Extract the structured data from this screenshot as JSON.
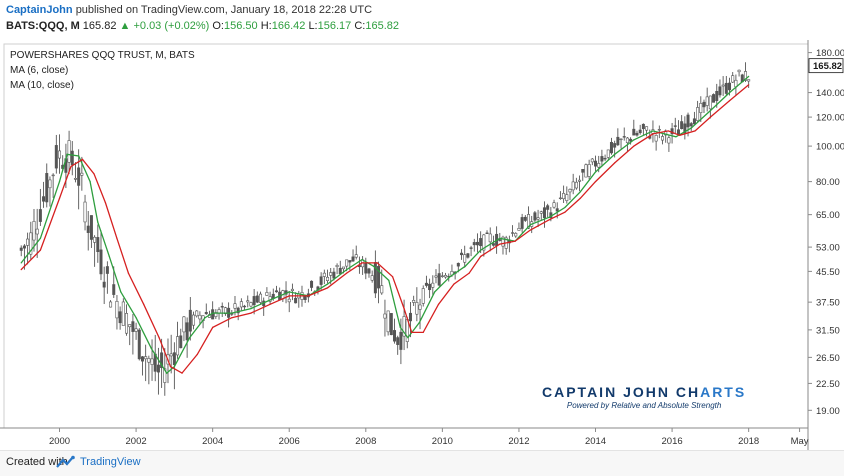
{
  "header": {
    "user": "CaptainJohn",
    "published": "published on TradingView.com, January 18, 2018 22:28 UTC",
    "symbol": "BATS:QQQ, M",
    "last": "165.82",
    "change_arrow": "▲",
    "change": "+0.03 (+0.02%)",
    "open_label": "O:",
    "open": "156.50",
    "high_label": "H:",
    "high": "166.42",
    "low_label": "L:",
    "low": "156.17",
    "close_label": "C:",
    "close": "165.82"
  },
  "legend": {
    "title": "POWERSHARES QQQ TRUST, M, BATS",
    "ma1": "MA (6, close)",
    "ma2": "MA (10, close)"
  },
  "branding": {
    "title_part1": "CAPTAIN JOHN CH",
    "title_part2": "ARTS",
    "subtitle": "Powered by Relative and  Absolute Strength"
  },
  "footer": {
    "made_with": "Created with",
    "tradingview": "TradingView"
  },
  "colors": {
    "candle": "#555555",
    "ma6": "#2e9e3e",
    "ma10": "#d62020",
    "last_price_tag": "#1a1a1a",
    "up": "#2e9e3e",
    "link": "#1a6fc4"
  },
  "chart_data": {
    "type": "line",
    "title": "POWERSHARES QQQ TRUST, M, BATS",
    "scale": "log",
    "ylim": [
      17,
      190
    ],
    "y_ticks": [
      "180.00",
      "140.00",
      "120.00",
      "100.00",
      "80.00",
      "65.00",
      "53.00",
      "45.50",
      "37.50",
      "31.50",
      "26.50",
      "22.50",
      "19.00"
    ],
    "x_ticks": [
      "2000",
      "2002",
      "2004",
      "2006",
      "2008",
      "2010",
      "2012",
      "2014",
      "2016",
      "2018",
      "May"
    ],
    "last_value_label": "165.82",
    "grid": false,
    "series": [
      {
        "name": "MA (6, close)",
        "x": [
          1999.0,
          1999.5,
          2000.0,
          2000.2,
          2000.5,
          2000.8,
          2001.0,
          2001.3,
          2001.6,
          2002.0,
          2002.4,
          2002.8,
          2003.0,
          2003.4,
          2003.8,
          2004.0,
          2004.5,
          2005.0,
          2005.5,
          2006.0,
          2006.5,
          2007.0,
          2007.5,
          2007.9,
          2008.2,
          2008.6,
          2008.9,
          2009.1,
          2009.4,
          2009.8,
          2010.2,
          2010.6,
          2011.0,
          2011.5,
          2011.9,
          2012.3,
          2012.8,
          2013.2,
          2013.6,
          2014.0,
          2014.5,
          2015.0,
          2015.5,
          2015.8,
          2016.1,
          2016.5,
          2017.0,
          2017.5,
          2018.0
        ],
        "y": [
          48,
          56,
          80,
          95,
          94,
          80,
          62,
          50,
          40,
          34,
          28,
          24,
          25,
          30,
          34,
          35,
          35,
          36,
          38,
          40,
          39,
          42,
          46,
          49,
          47,
          43,
          32,
          30,
          33,
          40,
          44,
          47,
          52,
          56,
          55,
          61,
          64,
          68,
          75,
          85,
          95,
          104,
          110,
          108,
          106,
          112,
          125,
          140,
          155
        ]
      },
      {
        "name": "MA (10, close)",
        "x": [
          1999.0,
          1999.5,
          2000.0,
          2000.3,
          2000.6,
          2000.9,
          2001.2,
          2001.5,
          2001.8,
          2002.2,
          2002.6,
          2002.9,
          2003.2,
          2003.6,
          2004.0,
          2004.5,
          2005.0,
          2005.5,
          2006.0,
          2006.5,
          2007.0,
          2007.5,
          2007.9,
          2008.3,
          2008.7,
          2009.0,
          2009.2,
          2009.5,
          2009.9,
          2010.3,
          2010.7,
          2011.0,
          2011.5,
          2011.9,
          2012.3,
          2012.8,
          2013.2,
          2013.6,
          2014.0,
          2014.5,
          2015.0,
          2015.5,
          2015.9,
          2016.2,
          2016.6,
          2017.0,
          2017.5,
          2018.0
        ],
        "y": [
          46,
          52,
          72,
          88,
          92,
          84,
          70,
          56,
          45,
          37,
          30,
          25,
          24,
          27,
          32,
          34,
          35,
          37,
          39,
          39,
          41,
          45,
          48,
          48,
          44,
          36,
          31,
          31,
          37,
          42,
          45,
          50,
          54,
          55,
          59,
          63,
          66,
          72,
          80,
          90,
          100,
          108,
          110,
          107,
          110,
          120,
          133,
          147
        ]
      }
    ]
  }
}
